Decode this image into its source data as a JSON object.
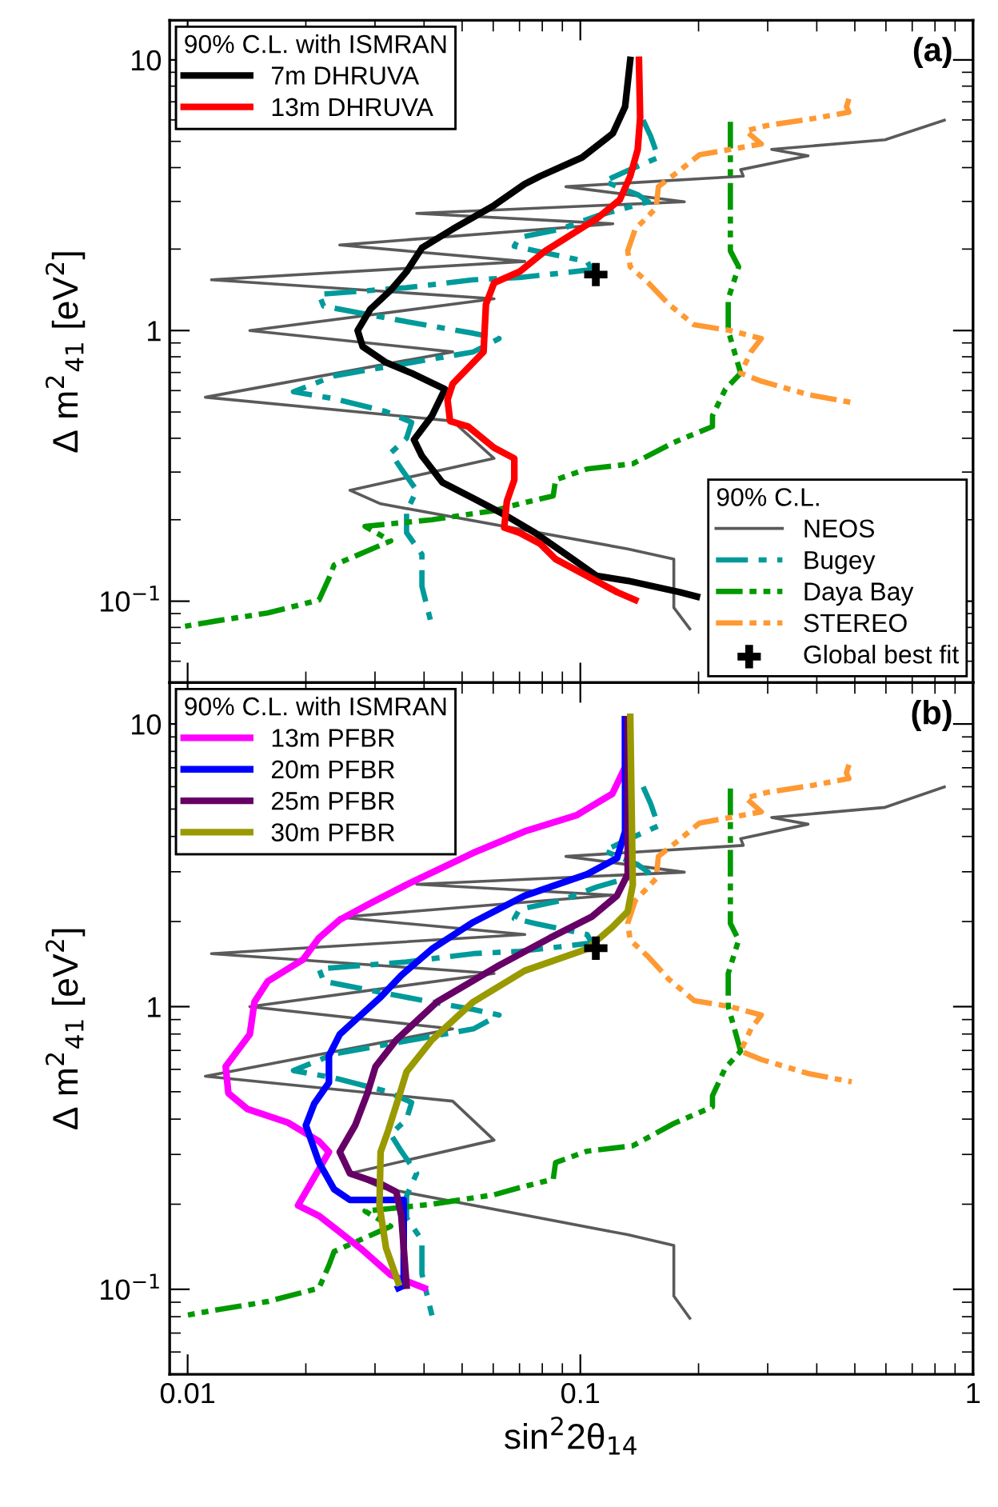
{
  "chart_data": [
    {
      "type": "line",
      "ylabel": "Δ m$^{2}$$_{41}$ [eV$^{2}$]",
      "annotations": [
        "(a)"
      ],
      "log": "xy",
      "xlim": [
        0.009,
        1
      ],
      "ylim": [
        0.05,
        14
      ],
      "xticks": [
        0.01,
        0.1,
        1
      ],
      "yticks": [
        {
          "value": 0.1,
          "label": "10$^{−1}$"
        },
        1,
        10
      ],
      "tick_labels": "y",
      "legend": [
        "bottom right",
        "top left"
      ],
      "legend_title": [
        "90% C.L.",
        "90% C.L. with ISMRAN"
      ],
      "series": [
        {
          "name": "NEOS",
          "color": "#5a5a5a",
          "line_style": "solid",
          "x": [
            0.845,
            0.597,
            0.307,
            0.38,
            0.256,
            0.26,
            0.0919,
            0.184,
            0.0383,
            0.121,
            0.0244,
            0.0722,
            0.0115,
            0.0603,
            0.0144,
            0.0473,
            0.0111,
            0.0473,
            0.0603,
            0.0259,
            0.031,
            0.132,
            0.173,
            0.173,
            0.19
          ],
          "values": [
            5.99,
            5.07,
            4.67,
            4.42,
            3.93,
            3.72,
            3.4,
            2.99,
            2.71,
            2.48,
            2.07,
            1.8,
            1.54,
            1.31,
            1.0,
            0.834,
            0.567,
            0.463,
            0.337,
            0.257,
            0.229,
            0.156,
            0.143,
            0.0947,
            0.079
          ]
        },
        {
          "name": "Bugey",
          "color": "#009a9a",
          "line_style": "dashdot",
          "x": [
            0.1445,
            0.151,
            0.158,
            0.132,
            0.115,
            0.14,
            0.149,
            0.11,
            0.0892,
            0.07,
            0.0679,
            0.0767,
            0.104,
            0.107,
            0.0892,
            0.07,
            0.0534,
            0.0361,
            0.0216,
            0.0222,
            0.0372,
            0.0534,
            0.0621,
            0.0534,
            0.0372,
            0.0236,
            0.0186,
            0.0236,
            0.032,
            0.0372,
            0.0361,
            0.0329,
            0.035,
            0.0383,
            0.0361,
            0.0361,
            0.0395,
            0.0395,
            0.0419
          ],
          "values": [
            5.99,
            5.23,
            4.36,
            3.9,
            3.56,
            3.18,
            2.99,
            2.65,
            2.37,
            2.21,
            2.05,
            1.97,
            1.8,
            1.68,
            1.63,
            1.57,
            1.54,
            1.44,
            1.36,
            1.23,
            1.07,
            0.977,
            0.934,
            0.834,
            0.762,
            0.68,
            0.594,
            0.56,
            0.502,
            0.458,
            0.4,
            0.353,
            0.308,
            0.257,
            0.214,
            0.179,
            0.149,
            0.1135,
            0.0808
          ]
        },
        {
          "name": "Daya Bay",
          "color": "#009900",
          "line_style": "dashdotdot",
          "x": [
            0.241,
            0.241,
            0.241,
            0.253,
            0.238,
            0.238,
            0.256,
            0.234,
            0.217,
            0.217,
            0.173,
            0.136,
            0.104,
            0.0865,
            0.0853,
            0.07,
            0.0603,
            0.0419,
            0.0283,
            0.0329,
            0.0236,
            0.0229,
            0.0216,
            0.016,
            0.0118,
            0.00985
          ],
          "values": [
            5.91,
            2.71,
            1.97,
            1.72,
            1.31,
            1.0,
            0.696,
            0.607,
            0.484,
            0.442,
            0.386,
            0.322,
            0.308,
            0.281,
            0.245,
            0.229,
            0.216,
            0.2,
            0.189,
            0.167,
            0.136,
            0.1215,
            0.101,
            0.0905,
            0.0845,
            0.0808
          ]
        },
        {
          "name": "STEREO",
          "color": "#ff9933",
          "line_style": "dashdotdot",
          "x": [
            0.483,
            0.476,
            0.483,
            0.391,
            0.298,
            0.264,
            0.289,
            0.241,
            0.201,
            0.179,
            0.158,
            0.156,
            0.138,
            0.132,
            0.134,
            0.149,
            0.168,
            0.195,
            0.241,
            0.289,
            0.272,
            0.256,
            0.289,
            0.38,
            0.491
          ],
          "values": [
            7.18,
            6.71,
            6.41,
            6.07,
            5.72,
            5.47,
            4.89,
            4.67,
            4.46,
            3.9,
            3.4,
            2.84,
            2.37,
            1.97,
            1.72,
            1.5,
            1.25,
            1.05,
            1.0,
            0.934,
            0.834,
            0.696,
            0.65,
            0.58,
            0.542
          ]
        },
        {
          "name": "Global best fit",
          "type": "scatter",
          "marker": "cross",
          "color": "#000000",
          "x": [
            0.1095
          ],
          "values": [
            1.61
          ]
        },
        {
          "name": "7m DHRUVA",
          "color": "#000000",
          "line_style": "solid",
          "x": [
            0.134,
            0.13,
            0.121,
            0.101,
            0.079,
            0.0722,
            0.0603,
            0.0473,
            0.0395,
            0.0361,
            0.0329,
            0.0292,
            0.0271,
            0.0279,
            0.032,
            0.0372,
            0.0452,
            0.0419,
            0.0377,
            0.0395,
            0.0445,
            0.0534,
            0.064,
            0.0767,
            0.0919,
            0.11,
            0.132,
            0.179,
            0.198
          ],
          "values": [
            10,
            6.71,
            5.35,
            4.36,
            3.72,
            3.48,
            2.9,
            2.37,
            2.02,
            1.65,
            1.41,
            1.2,
            1.0,
            0.873,
            0.762,
            0.696,
            0.607,
            0.484,
            0.395,
            0.344,
            0.275,
            0.24,
            0.209,
            0.179,
            0.149,
            0.124,
            0.119,
            0.108,
            0.104
          ]
        },
        {
          "name": "13m DHRUVA",
          "color": "#ff0000",
          "line_style": "solid",
          "x": [
            0.141,
            0.142,
            0.14,
            0.134,
            0.126,
            0.11,
            0.0947,
            0.0815,
            0.07,
            0.0603,
            0.0575,
            0.0567,
            0.0473,
            0.0459,
            0.0466,
            0.0518,
            0.0603,
            0.0679,
            0.0679,
            0.065,
            0.064,
            0.07,
            0.079,
            0.0865,
            0.104,
            0.124,
            0.138
          ],
          "values": [
            10,
            6.13,
            4.67,
            3.72,
            3.04,
            2.59,
            2.26,
            1.97,
            1.65,
            1.5,
            1.25,
            0.834,
            0.635,
            0.555,
            0.463,
            0.442,
            0.369,
            0.337,
            0.281,
            0.234,
            0.187,
            0.179,
            0.163,
            0.143,
            0.124,
            0.108,
            0.101
          ]
        }
      ]
    },
    {
      "type": "line",
      "xlabel": "sin$^{2}$2θ$_{14}$",
      "ylabel": "Δ m$^{2}$$_{41}$ [eV$^{2}$]",
      "annotations": [
        "(b)"
      ],
      "log": "xy",
      "xlim": [
        0.009,
        1
      ],
      "ylim": [
        0.05,
        14
      ],
      "xticks": [
        0.01,
        0.1,
        1
      ],
      "yticks": [
        {
          "value": 0.1,
          "label": "10$^{−1}$"
        },
        1,
        10
      ],
      "legend": [
        "top left"
      ],
      "legend_title": [
        "90% C.L. with ISMRAN"
      ],
      "series": [
        {
          "color": "#5a5a5a",
          "line_style": "solid",
          "x": [
            0.845,
            0.597,
            0.307,
            0.38,
            0.256,
            0.26,
            0.0919,
            0.184,
            0.0383,
            0.121,
            0.0244,
            0.0722,
            0.0115,
            0.0603,
            0.0144,
            0.0473,
            0.0111,
            0.0473,
            0.0603,
            0.0259,
            0.031,
            0.132,
            0.173,
            0.173,
            0.19
          ],
          "values": [
            5.99,
            5.07,
            4.67,
            4.42,
            3.93,
            3.72,
            3.4,
            2.99,
            2.71,
            2.48,
            2.07,
            1.8,
            1.54,
            1.31,
            1.0,
            0.834,
            0.567,
            0.463,
            0.337,
            0.257,
            0.229,
            0.156,
            0.143,
            0.0947,
            0.079
          ]
        },
        {
          "color": "#009a9a",
          "line_style": "dashdot",
          "x": [
            0.1445,
            0.151,
            0.158,
            0.132,
            0.115,
            0.14,
            0.149,
            0.11,
            0.0892,
            0.07,
            0.0679,
            0.0767,
            0.104,
            0.107,
            0.0892,
            0.07,
            0.0534,
            0.0361,
            0.0216,
            0.0222,
            0.0372,
            0.0534,
            0.0621,
            0.0534,
            0.0372,
            0.0236,
            0.0186,
            0.0236,
            0.032,
            0.0372,
            0.0361,
            0.0329,
            0.035,
            0.0383,
            0.0361,
            0.0361,
            0.0395,
            0.0395,
            0.0419
          ],
          "values": [
            5.99,
            5.23,
            4.36,
            3.9,
            3.56,
            3.18,
            2.99,
            2.65,
            2.37,
            2.21,
            2.05,
            1.97,
            1.8,
            1.68,
            1.63,
            1.57,
            1.54,
            1.44,
            1.36,
            1.23,
            1.07,
            0.977,
            0.934,
            0.834,
            0.762,
            0.68,
            0.594,
            0.56,
            0.502,
            0.458,
            0.4,
            0.353,
            0.308,
            0.257,
            0.214,
            0.179,
            0.149,
            0.1135,
            0.0808
          ]
        },
        {
          "color": "#009900",
          "line_style": "dashdotdot",
          "x": [
            0.241,
            0.241,
            0.241,
            0.253,
            0.238,
            0.238,
            0.256,
            0.234,
            0.217,
            0.217,
            0.173,
            0.136,
            0.104,
            0.0865,
            0.0853,
            0.07,
            0.0603,
            0.0419,
            0.0283,
            0.0329,
            0.0236,
            0.0229,
            0.0216,
            0.016,
            0.0118,
            0.00985
          ],
          "values": [
            5.91,
            2.71,
            1.97,
            1.72,
            1.31,
            1.0,
            0.696,
            0.607,
            0.484,
            0.442,
            0.386,
            0.322,
            0.308,
            0.281,
            0.245,
            0.229,
            0.216,
            0.2,
            0.189,
            0.167,
            0.136,
            0.1215,
            0.101,
            0.0905,
            0.0845,
            0.0808
          ]
        },
        {
          "color": "#ff9933",
          "line_style": "dashdotdot",
          "x": [
            0.483,
            0.476,
            0.483,
            0.391,
            0.298,
            0.264,
            0.289,
            0.241,
            0.201,
            0.179,
            0.158,
            0.156,
            0.138,
            0.132,
            0.134,
            0.149,
            0.168,
            0.195,
            0.241,
            0.289,
            0.272,
            0.256,
            0.289,
            0.38,
            0.491
          ],
          "values": [
            7.18,
            6.71,
            6.41,
            6.07,
            5.72,
            5.47,
            4.89,
            4.67,
            4.46,
            3.9,
            3.4,
            2.84,
            2.37,
            1.97,
            1.72,
            1.5,
            1.25,
            1.05,
            1.0,
            0.934,
            0.834,
            0.696,
            0.65,
            0.58,
            0.542
          ]
        },
        {
          "type": "scatter",
          "marker": "cross",
          "color": "#000000",
          "x": [
            0.1095
          ],
          "values": [
            1.61
          ]
        },
        {
          "name": "13m PFBR",
          "color": "#ff00ff",
          "line_style": "solid",
          "x": [
            0.13,
            0.13,
            0.1206,
            0.0977,
            0.0722,
            0.0534,
            0.0361,
            0.0292,
            0.0244,
            0.0216,
            0.0197,
            0.016,
            0.0148,
            0.0144,
            0.0125,
            0.0127,
            0.0142,
            0.018,
            0.0216,
            0.0229,
            0.0191,
            0.0216,
            0.0275,
            0.0329,
            0.0401
          ],
          "values": [
            10.4,
            7.03,
            5.66,
            4.75,
            4.17,
            3.5,
            2.7,
            2.32,
            2.03,
            1.75,
            1.47,
            1.23,
            1.04,
            0.798,
            0.614,
            0.494,
            0.434,
            0.389,
            0.334,
            0.306,
            0.198,
            0.182,
            0.14,
            0.1125,
            0.101
          ]
        },
        {
          "name": "20m PFBR",
          "color": "#0000ff",
          "line_style": "solid",
          "x": [
            0.13,
            0.13,
            0.124,
            0.104,
            0.0722,
            0.0534,
            0.0419,
            0.035,
            0.031,
            0.0275,
            0.0244,
            0.0229,
            0.0229,
            0.021,
            0.02,
            0.0216,
            0.0236,
            0.0259,
            0.0355,
            0.0355,
            0.0344
          ],
          "values": [
            10.4,
            4.17,
            3.35,
            2.94,
            2.47,
            1.99,
            1.6,
            1.29,
            1.08,
            0.929,
            0.798,
            0.67,
            0.539,
            0.453,
            0.38,
            0.281,
            0.226,
            0.207,
            0.207,
            0.103,
            0.101
          ]
        },
        {
          "name": "25m PFBR",
          "color": "#660066",
          "line_style": "solid",
          "x": [
            0.132,
            0.132,
            0.124,
            0.107,
            0.0837,
            0.0621,
            0.0432,
            0.034,
            0.0301,
            0.0287,
            0.0267,
            0.0244,
            0.0259,
            0.031,
            0.034,
            0.035,
            0.0361
          ],
          "values": [
            10.4,
            2.94,
            2.47,
            2.08,
            1.75,
            1.4,
            1.04,
            0.763,
            0.614,
            0.494,
            0.38,
            0.306,
            0.257,
            0.236,
            0.221,
            0.182,
            0.103
          ]
        },
        {
          "name": "30m PFBR",
          "color": "#999900",
          "line_style": "solid",
          "x": [
            0.134,
            0.136,
            0.132,
            0.1206,
            0.104,
            0.0722,
            0.0534,
            0.0419,
            0.0361,
            0.0344,
            0.0324,
            0.031,
            0.0308,
            0.032,
            0.0344
          ],
          "values": [
            10.6,
            2.7,
            2.17,
            1.91,
            1.6,
            1.34,
            1.04,
            0.763,
            0.588,
            0.473,
            0.364,
            0.306,
            0.198,
            0.14,
            0.1054
          ]
        }
      ]
    }
  ]
}
